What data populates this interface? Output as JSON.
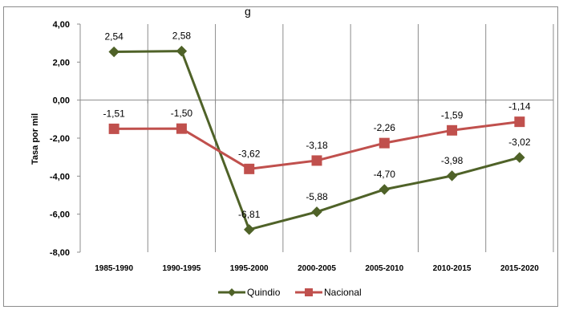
{
  "top_fragment": "g",
  "chart_data": {
    "type": "line",
    "title": "",
    "xlabel": "",
    "ylabel": "Tasa por mil",
    "categories": [
      "1985-1990",
      "1990-1995",
      "1995-2000",
      "2000-2005",
      "2005-2010",
      "2010-2015",
      "2015-2020"
    ],
    "yticks": [
      "4,00",
      "2,00",
      "0,00",
      "-2,00",
      "-4,00",
      "-6,00",
      "-8,00"
    ],
    "ylim": [
      -8,
      4
    ],
    "grid": "vertical",
    "legend": "bottom",
    "series": [
      {
        "name": "Quindio",
        "values": [
          2.54,
          2.58,
          -6.81,
          -5.88,
          -4.7,
          -3.98,
          -3.02
        ],
        "labels": [
          "2,54",
          "2,58",
          "-6,81",
          "-5,88",
          "-4,70",
          "-3,98",
          "-3,02"
        ],
        "color": "#4f6228",
        "marker": "diamond"
      },
      {
        "name": "Nacional",
        "values": [
          -1.51,
          -1.5,
          -3.62,
          -3.18,
          -2.26,
          -1.59,
          -1.14
        ],
        "labels": [
          "-1,51",
          "-1,50",
          "-3,62",
          "-3,18",
          "-2,26",
          "-1,59",
          "-1,14"
        ],
        "color": "#c0504d",
        "marker": "square"
      }
    ]
  }
}
